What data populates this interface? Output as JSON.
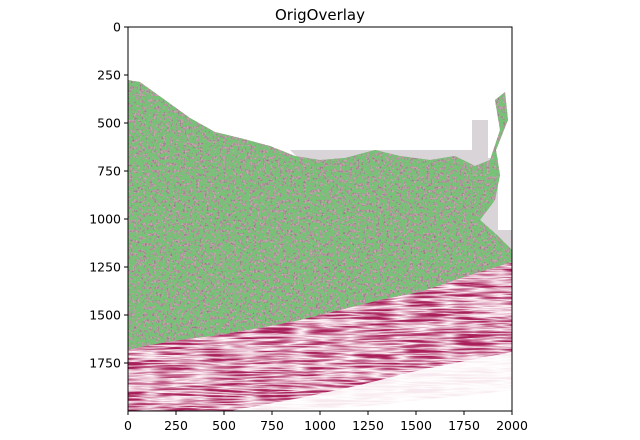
{
  "figure": {
    "title": "OrigOverlay",
    "x_ticks": [
      "0",
      "250",
      "500",
      "750",
      "1000",
      "1250",
      "1500",
      "1750",
      "2000"
    ],
    "y_ticks": [
      "0",
      "250",
      "500",
      "750",
      "1000",
      "1250",
      "1500",
      "1750"
    ]
  },
  "image": {
    "x_range": [
      0,
      2000
    ],
    "y_range": [
      0,
      2000
    ],
    "colors": {
      "background": "#ffffff",
      "gray_mask": "#d8d4d8",
      "tissue_base": "#c9a6b0",
      "tissue_dark": "#3a2a30",
      "muscle_base": "#a81f5a",
      "muscle_light": "#d98aa6",
      "overlay_green": "#2f8a2f",
      "overlay_red": "#d6402a"
    }
  }
}
